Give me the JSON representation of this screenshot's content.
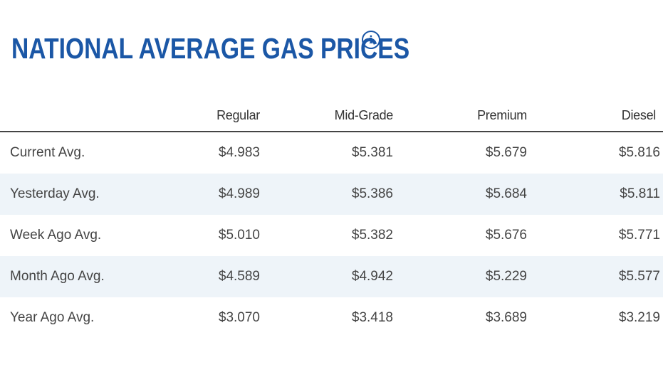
{
  "header": {
    "title": "NATIONAL AVERAGE GAS PRICES",
    "info_icon": "info-icon",
    "info_glyph": "i"
  },
  "table": {
    "columns": [
      "",
      "Regular",
      "Mid-Grade",
      "Premium",
      "Diesel"
    ],
    "rows": [
      {
        "label": "Current Avg.",
        "values": [
          "$4.983",
          "$5.381",
          "$5.679",
          "$5.816"
        ]
      },
      {
        "label": "Yesterday Avg.",
        "values": [
          "$4.989",
          "$5.386",
          "$5.684",
          "$5.811"
        ]
      },
      {
        "label": "Week Ago Avg.",
        "values": [
          "$5.010",
          "$5.382",
          "$5.676",
          "$5.771"
        ]
      },
      {
        "label": "Month Ago Avg.",
        "values": [
          "$4.589",
          "$4.942",
          "$5.229",
          "$5.577"
        ]
      },
      {
        "label": "Year Ago Avg.",
        "values": [
          "$3.070",
          "$3.418",
          "$3.689",
          "$3.219"
        ]
      }
    ]
  },
  "colors": {
    "title": "#1b57a6",
    "alt_row": "#eef4f9",
    "text": "#444444"
  }
}
